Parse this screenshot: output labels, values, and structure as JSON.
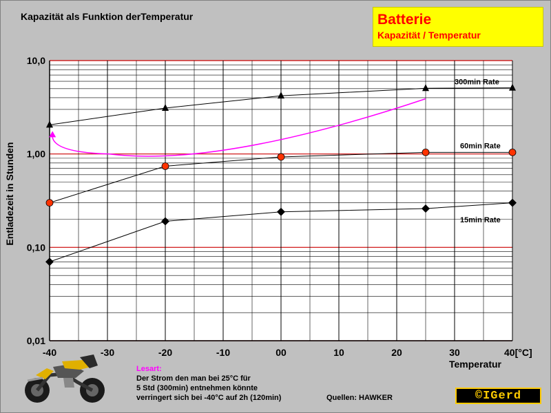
{
  "header": {
    "title": "Kapazität als Funktion derTemperatur"
  },
  "title_box": {
    "main": "Batterie",
    "sub": "Kapazität / Temperatur"
  },
  "chart_data": {
    "type": "line",
    "x_scale": "linear",
    "y_scale": "log",
    "xlim": [
      -40,
      40
    ],
    "ylim": [
      0.01,
      10
    ],
    "x_ticks": [
      -40,
      -30,
      -20,
      -10,
      0,
      10,
      20,
      30,
      40
    ],
    "x_tick_labels": [
      "-40",
      "-30",
      "-20",
      "-10",
      "00",
      "10",
      "20",
      "30",
      "40[°C]"
    ],
    "y_ticks": [
      0.01,
      0.1,
      1,
      10
    ],
    "y_tick_labels": [
      "0,01",
      "0,10",
      "1,00",
      "10,0"
    ],
    "xlabel": "Temperatur",
    "ylabel": "Entladezeit in Stunden",
    "grid": true,
    "series": [
      {
        "name": "300min Rate",
        "marker": "triangle",
        "color": "#000000",
        "x": [
          -40,
          -20,
          0,
          25,
          40
        ],
        "y": [
          2.05,
          3.1,
          4.2,
          5.05,
          5.1
        ]
      },
      {
        "name": "60min Rate",
        "marker": "circle",
        "color": "#ff3300",
        "x": [
          -40,
          -20,
          0,
          25,
          40
        ],
        "y": [
          0.3,
          0.74,
          0.93,
          1.04,
          1.04
        ]
      },
      {
        "name": "15min Rate",
        "marker": "diamond",
        "color": "#000000",
        "x": [
          -40,
          -20,
          0,
          25,
          40
        ],
        "y": [
          0.07,
          0.19,
          0.24,
          0.26,
          0.3
        ]
      }
    ],
    "annotation_arrow": {
      "color": "#ff00ff",
      "from": [
        25,
        3.9
      ],
      "via": [
        -25,
        1.0
      ],
      "to": [
        -39.5,
        1.85
      ]
    }
  },
  "note": {
    "title": "Lesart:",
    "lines": [
      "Der Strom den man bei 25°C für",
      "5 Std (300min) entnehmen könnte",
      "verringert sich bei -40°C auf 2h (120min)"
    ]
  },
  "source": "Quellen: HAWKER",
  "copyright": "©IGerd",
  "colors": {
    "background": "#c0c0c0",
    "decade_line": "#cc0000",
    "grid": "#000000",
    "highlight": "#ffff00",
    "accent": "#ff0000",
    "annotation": "#ff00ff"
  }
}
